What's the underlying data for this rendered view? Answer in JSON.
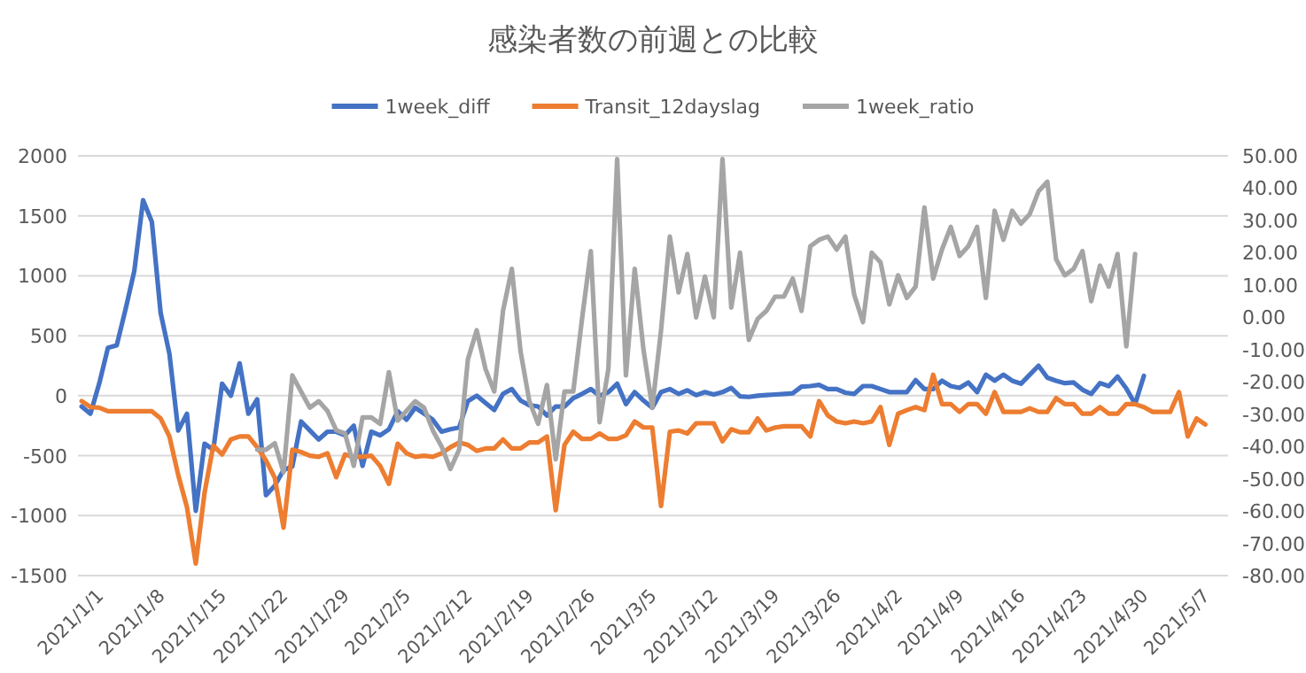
{
  "chart_data": {
    "type": "line",
    "title": "感染者数の前週との比較",
    "x": [
      "2020-12-30",
      "2020-12-31",
      "2021-01-01",
      "2021-01-02",
      "2021-01-03",
      "2021-01-04",
      "2021-01-05",
      "2021-01-06",
      "2021-01-07",
      "2021-01-08",
      "2021-01-09",
      "2021-01-10",
      "2021-01-11",
      "2021-01-12",
      "2021-01-13",
      "2021-01-14",
      "2021-01-15",
      "2021-01-16",
      "2021-01-17",
      "2021-01-18",
      "2021-01-19",
      "2021-01-20",
      "2021-01-21",
      "2021-01-22",
      "2021-01-23",
      "2021-01-24",
      "2021-01-25",
      "2021-01-26",
      "2021-01-27",
      "2021-01-28",
      "2021-01-29",
      "2021-01-30",
      "2021-01-31",
      "2021-02-01",
      "2021-02-02",
      "2021-02-03",
      "2021-02-04",
      "2021-02-05",
      "2021-02-06",
      "2021-02-07",
      "2021-02-08",
      "2021-02-09",
      "2021-02-10",
      "2021-02-11",
      "2021-02-12",
      "2021-02-13",
      "2021-02-14",
      "2021-02-15",
      "2021-02-16",
      "2021-02-17",
      "2021-02-18",
      "2021-02-19",
      "2021-02-20",
      "2021-02-21",
      "2021-02-22",
      "2021-02-23",
      "2021-02-24",
      "2021-02-25",
      "2021-02-26",
      "2021-02-27",
      "2021-02-28",
      "2021-03-01",
      "2021-03-02",
      "2021-03-03",
      "2021-03-04",
      "2021-03-05",
      "2021-03-06",
      "2021-03-07",
      "2021-03-08",
      "2021-03-09",
      "2021-03-10",
      "2021-03-11",
      "2021-03-12",
      "2021-03-13",
      "2021-03-14",
      "2021-03-15",
      "2021-03-16",
      "2021-03-17",
      "2021-03-18",
      "2021-03-19",
      "2021-03-20",
      "2021-03-21",
      "2021-03-22",
      "2021-03-23",
      "2021-03-24",
      "2021-03-25",
      "2021-03-26",
      "2021-03-27",
      "2021-03-28",
      "2021-03-29",
      "2021-03-30",
      "2021-03-31",
      "2021-04-01",
      "2021-04-02",
      "2021-04-03",
      "2021-04-04",
      "2021-04-05",
      "2021-04-06",
      "2021-04-07",
      "2021-04-08",
      "2021-04-09",
      "2021-04-10",
      "2021-04-11",
      "2021-04-12",
      "2021-04-13",
      "2021-04-14",
      "2021-04-15",
      "2021-04-16",
      "2021-04-17",
      "2021-04-18",
      "2021-04-19",
      "2021-04-20",
      "2021-04-21",
      "2021-04-22",
      "2021-04-23",
      "2021-04-24",
      "2021-04-25",
      "2021-04-26",
      "2021-04-27",
      "2021-04-28",
      "2021-04-29",
      "2021-04-30",
      "2021-05-01",
      "2021-05-02",
      "2021-05-03",
      "2021-05-04",
      "2021-05-05",
      "2021-05-06",
      "2021-05-07"
    ],
    "series": [
      {
        "name": "1week_diff",
        "color": "#4472c4",
        "values": [
          -90,
          -150,
          100,
          400,
          420,
          720,
          1040,
          1630,
          1450,
          690,
          350,
          -290,
          -150,
          -960,
          -400,
          -450,
          100,
          0,
          270,
          -150,
          -30,
          -830,
          -750,
          -620,
          -590,
          -215,
          -290,
          -365,
          -300,
          -300,
          -330,
          -250,
          -585,
          -300,
          -330,
          -280,
          -130,
          -200,
          -100,
          -150,
          -200,
          -300,
          -280,
          -265,
          -45,
          0,
          -60,
          -120,
          15,
          55,
          -40,
          -80,
          -90,
          -165,
          -90,
          -90,
          -20,
          15,
          55,
          0,
          30,
          100,
          -70,
          30,
          -40,
          -100,
          30,
          55,
          15,
          45,
          5,
          30,
          10,
          30,
          65,
          -5,
          -10,
          0,
          5,
          10,
          15,
          20,
          75,
          80,
          90,
          55,
          55,
          25,
          15,
          80,
          80,
          55,
          30,
          30,
          30,
          130,
          55,
          55,
          125,
          80,
          65,
          110,
          30,
          175,
          125,
          175,
          125,
          100,
          175,
          250,
          150,
          125,
          105,
          110,
          50,
          15,
          105,
          80,
          160,
          60,
          -70,
          165,
          null,
          null,
          null,
          null,
          null,
          null,
          null
        ]
      },
      {
        "name": "Transit_12dayslag",
        "color": "#ed7d31",
        "values": [
          -45,
          -95,
          -100,
          -130,
          -130,
          -130,
          -130,
          -130,
          -130,
          -190,
          -340,
          -660,
          -930,
          -1400,
          -810,
          -415,
          -490,
          -365,
          -340,
          -340,
          -430,
          -540,
          -685,
          -1100,
          -450,
          -470,
          -500,
          -510,
          -480,
          -680,
          -490,
          -510,
          -510,
          -500,
          -585,
          -735,
          -400,
          -480,
          -510,
          -500,
          -510,
          -480,
          -430,
          -390,
          -410,
          -460,
          -440,
          -440,
          -365,
          -440,
          -440,
          -390,
          -390,
          -340,
          -955,
          -410,
          -300,
          -360,
          -360,
          -315,
          -360,
          -360,
          -330,
          -215,
          -265,
          -265,
          -920,
          -300,
          -290,
          -315,
          -230,
          -230,
          -230,
          -380,
          -280,
          -305,
          -305,
          -190,
          -290,
          -265,
          -255,
          -255,
          -255,
          -340,
          -45,
          -165,
          -215,
          -230,
          -215,
          -230,
          -215,
          -95,
          -410,
          -150,
          -120,
          -95,
          -120,
          175,
          -70,
          -70,
          -135,
          -70,
          -70,
          -150,
          30,
          -135,
          -135,
          -135,
          -105,
          -135,
          -135,
          -20,
          -70,
          -70,
          -150,
          -150,
          -95,
          -150,
          -150,
          -70,
          -70,
          -95,
          -135,
          -135,
          -135,
          30,
          -340,
          -190,
          -240
        ]
      },
      {
        "name": "1week_ratio",
        "color": "#a5a5a5",
        "axis": "y2",
        "values": [
          null,
          null,
          null,
          null,
          null,
          null,
          null,
          null,
          null,
          null,
          null,
          null,
          null,
          null,
          null,
          null,
          null,
          null,
          null,
          null,
          -41,
          -41,
          -39,
          -48,
          -18,
          -23,
          -28,
          -26,
          -29,
          -35,
          -36,
          -46,
          -31,
          -31,
          -33,
          -17,
          -32,
          -29,
          -26,
          -28,
          -35,
          -40,
          -47,
          -41,
          -13,
          -4,
          -16,
          -23,
          2,
          15,
          -10.6,
          -26,
          -33,
          -21,
          -44,
          -23,
          -23,
          -0.5,
          20.5,
          -32.5,
          -16,
          49,
          -18,
          15,
          -10,
          -28,
          -4,
          25,
          7.7,
          19.6,
          0,
          12.6,
          0,
          49,
          3,
          20,
          -7,
          -0.5,
          2,
          6.4,
          6.4,
          12,
          2,
          22,
          24,
          25,
          21,
          25,
          7,
          -1.5,
          20,
          17,
          4,
          13,
          6,
          9.5,
          34,
          12,
          21,
          28,
          19,
          22,
          28,
          6,
          33,
          24,
          33,
          29,
          32,
          39,
          42,
          18,
          13,
          15,
          20.5,
          5,
          16,
          9.5,
          19.6,
          -9,
          19.6,
          null,
          null,
          null,
          null,
          null,
          null,
          null,
          null
        ]
      }
    ],
    "xlim": [
      "2020-12-29T14:00",
      "2021-05-09T14:00"
    ],
    "xticks": [
      {
        "value": "2021-01-01",
        "label": "2021/1/1"
      },
      {
        "value": "2021-01-08",
        "label": "2021/1/8"
      },
      {
        "value": "2021-01-15",
        "label": "2021/1/15"
      },
      {
        "value": "2021-01-22",
        "label": "2021/1/22"
      },
      {
        "value": "2021-01-29",
        "label": "2021/1/29"
      },
      {
        "value": "2021-02-05",
        "label": "2021/2/5"
      },
      {
        "value": "2021-02-12",
        "label": "2021/2/12"
      },
      {
        "value": "2021-02-19",
        "label": "2021/2/19"
      },
      {
        "value": "2021-02-26",
        "label": "2021/2/26"
      },
      {
        "value": "2021-03-05",
        "label": "2021/3/5"
      },
      {
        "value": "2021-03-12",
        "label": "2021/3/12"
      },
      {
        "value": "2021-03-19",
        "label": "2021/3/19"
      },
      {
        "value": "2021-03-26",
        "label": "2021/3/26"
      },
      {
        "value": "2021-04-02",
        "label": "2021/4/2"
      },
      {
        "value": "2021-04-09",
        "label": "2021/4/9"
      },
      {
        "value": "2021-04-16",
        "label": "2021/4/16"
      },
      {
        "value": "2021-04-23",
        "label": "2021/4/23"
      },
      {
        "value": "2021-04-30",
        "label": "2021/4/30"
      },
      {
        "value": "2021-05-07",
        "label": "2021/5/7"
      }
    ],
    "ylim": [
      -1500,
      2000
    ],
    "yticks": [
      -1500,
      -1000,
      -500,
      0,
      500,
      1000,
      1500,
      2000
    ],
    "y2lim": [
      -80,
      50
    ],
    "y2ticks": [
      {
        "value": -80,
        "label": "-80.00"
      },
      {
        "value": -70,
        "label": "-70.00"
      },
      {
        "value": -60,
        "label": "-60.00"
      },
      {
        "value": -50,
        "label": "-50.00"
      },
      {
        "value": -40,
        "label": "-40.00"
      },
      {
        "value": -30,
        "label": "-30.00"
      },
      {
        "value": -20,
        "label": "-20.00"
      },
      {
        "value": -10,
        "label": "-10.00"
      },
      {
        "value": 0,
        "label": "0.00"
      },
      {
        "value": 10,
        "label": "10.00"
      },
      {
        "value": 20,
        "label": "20.00"
      },
      {
        "value": 30,
        "label": "30.00"
      },
      {
        "value": 40,
        "label": "40.00"
      },
      {
        "value": 50,
        "label": "50.00"
      }
    ],
    "grid": "y",
    "legend": "top",
    "marker": "none",
    "line_style": "solid"
  }
}
